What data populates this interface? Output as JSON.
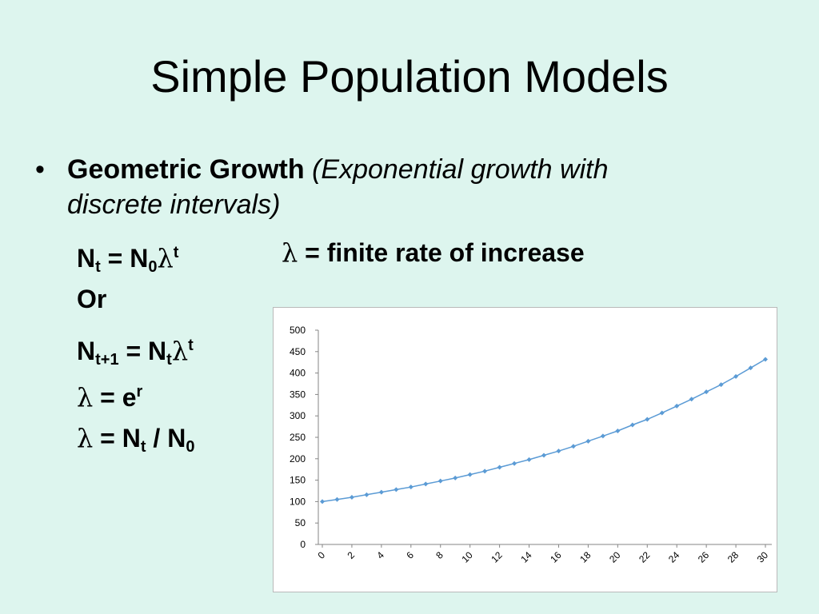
{
  "slide": {
    "title": "Simple Population Models",
    "bullet": {
      "symbol": "•",
      "bold_text": "Geometric Growth",
      "italic_text": "(Exponential growth with discrete intervals)"
    },
    "equations": {
      "eq1": {
        "lhs": "N",
        "lhs_sub": "t",
        "eq": " = N",
        "sub0": "0",
        "lambda": "λ",
        "sup": "t"
      },
      "definition": {
        "lambda": "λ",
        "text": " = finite rate of increase"
      },
      "or": "Or",
      "eq2": {
        "lhs": "N",
        "lhs_sub": "t+1",
        "eq": " = N",
        "sub_t": "t",
        "lambda": "λ",
        "sup": "t"
      },
      "eq3": {
        "lambda": "λ",
        "eq": " = e",
        "sup": "r"
      },
      "eq4": {
        "lambda": "λ",
        "eq": " = N",
        "sub_t": "t",
        "slash": " / N",
        "sub0": "0"
      }
    }
  },
  "colors": {
    "background": "#ddf5ee",
    "series": "#5b9bd5",
    "grid": "#d9d9d9"
  },
  "chart_data": {
    "type": "line",
    "title": "",
    "xlabel": "",
    "ylabel": "",
    "ylim": [
      0,
      500
    ],
    "yticks": [
      0,
      50,
      100,
      150,
      200,
      250,
      300,
      350,
      400,
      450,
      500
    ],
    "xticks": [
      "0",
      "2",
      "4",
      "6",
      "8",
      "10",
      "12",
      "14",
      "16",
      "18",
      "20",
      "22",
      "24",
      "26",
      "28",
      "30"
    ],
    "grid": false,
    "legend": "none",
    "marker": "diamond",
    "x": [
      0,
      1,
      2,
      3,
      4,
      5,
      6,
      7,
      8,
      9,
      10,
      11,
      12,
      13,
      14,
      15,
      16,
      17,
      18,
      19,
      20,
      21,
      22,
      23,
      24,
      25,
      26,
      27,
      28,
      29,
      30
    ],
    "series": [
      {
        "values": [
          100,
          105,
          110,
          116,
          122,
          128,
          134,
          141,
          148,
          155,
          163,
          171,
          180,
          189,
          198,
          208,
          218,
          229,
          241,
          253,
          265,
          279,
          292,
          307,
          323,
          339,
          356,
          373,
          392,
          412,
          432
        ]
      }
    ]
  }
}
